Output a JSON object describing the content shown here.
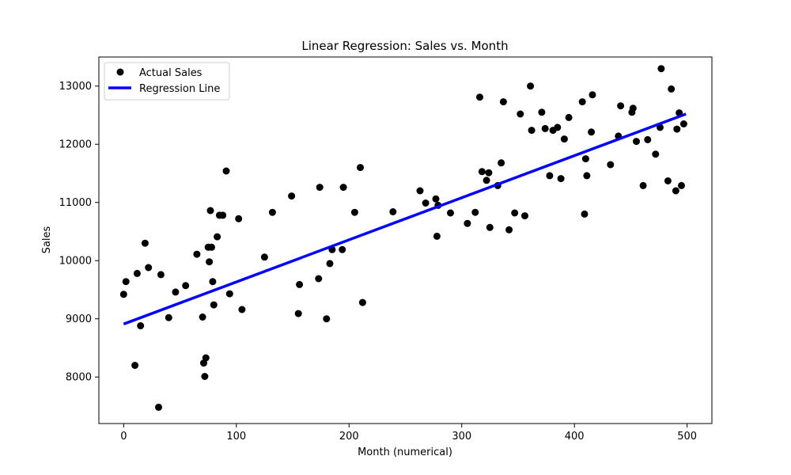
{
  "chart_data": {
    "type": "scatter",
    "title": "Linear Regression: Sales vs. Month",
    "xlabel": "Month (numerical)",
    "ylabel": "Sales",
    "xlim": [
      -22,
      522
    ],
    "ylim": [
      7200,
      13500
    ],
    "x_ticks": [
      0,
      100,
      200,
      300,
      400,
      500
    ],
    "y_ticks": [
      8000,
      9000,
      10000,
      11000,
      12000,
      13000
    ],
    "grid": false,
    "legend_position": "top-left",
    "colors": {
      "points": "#000000",
      "regression_line": "#0000ff"
    },
    "series": [
      {
        "name": "Actual Sales",
        "type": "scatter",
        "x": [
          0,
          2,
          10,
          12,
          15,
          19,
          22,
          31,
          33,
          40,
          46,
          55,
          65,
          70,
          71,
          72,
          73,
          75,
          76,
          77,
          78,
          79,
          80,
          83,
          85,
          88,
          91,
          94,
          102,
          105,
          125,
          132,
          149,
          155,
          156,
          173,
          174,
          180,
          183,
          185,
          194,
          195,
          205,
          210,
          212,
          239,
          263,
          268,
          277,
          278,
          279,
          290,
          305,
          312,
          316,
          318,
          322,
          324,
          325,
          332,
          335,
          337,
          342,
          347,
          352,
          356,
          361,
          362,
          371,
          374,
          378,
          381,
          385,
          388,
          391,
          395,
          407,
          409,
          410,
          411,
          415,
          416,
          432,
          439,
          441,
          451,
          452,
          455,
          461,
          465,
          472,
          476,
          477,
          483,
          486,
          490,
          491,
          493,
          495,
          497
        ],
        "y": [
          9420,
          9640,
          8200,
          9780,
          8880,
          10300,
          9880,
          7480,
          9760,
          9020,
          9460,
          9570,
          10110,
          9030,
          8240,
          8010,
          8330,
          10230,
          9980,
          10860,
          10230,
          9640,
          9240,
          10410,
          10780,
          10780,
          11540,
          9430,
          10720,
          9160,
          10060,
          10830,
          11110,
          9090,
          9590,
          9690,
          11260,
          9000,
          9950,
          10190,
          10190,
          11260,
          10830,
          11600,
          9280,
          10840,
          11200,
          10990,
          11060,
          10420,
          10950,
          10820,
          10640,
          10830,
          12810,
          11530,
          11380,
          11510,
          10570,
          11290,
          11680,
          12730,
          10530,
          10820,
          12520,
          10770,
          13000,
          12240,
          12550,
          12270,
          11460,
          12240,
          12290,
          11410,
          12090,
          12460,
          12730,
          10800,
          11750,
          11460,
          12210,
          12850,
          11650,
          12140,
          12660,
          12550,
          12620,
          12050,
          11290,
          12080,
          11830,
          12290,
          13300,
          11370,
          12950,
          11200,
          12260,
          12540,
          11290,
          12350
        ]
      },
      {
        "name": "Regression Line",
        "type": "line",
        "x": [
          0,
          499
        ],
        "y": [
          8910,
          12520
        ]
      }
    ]
  }
}
